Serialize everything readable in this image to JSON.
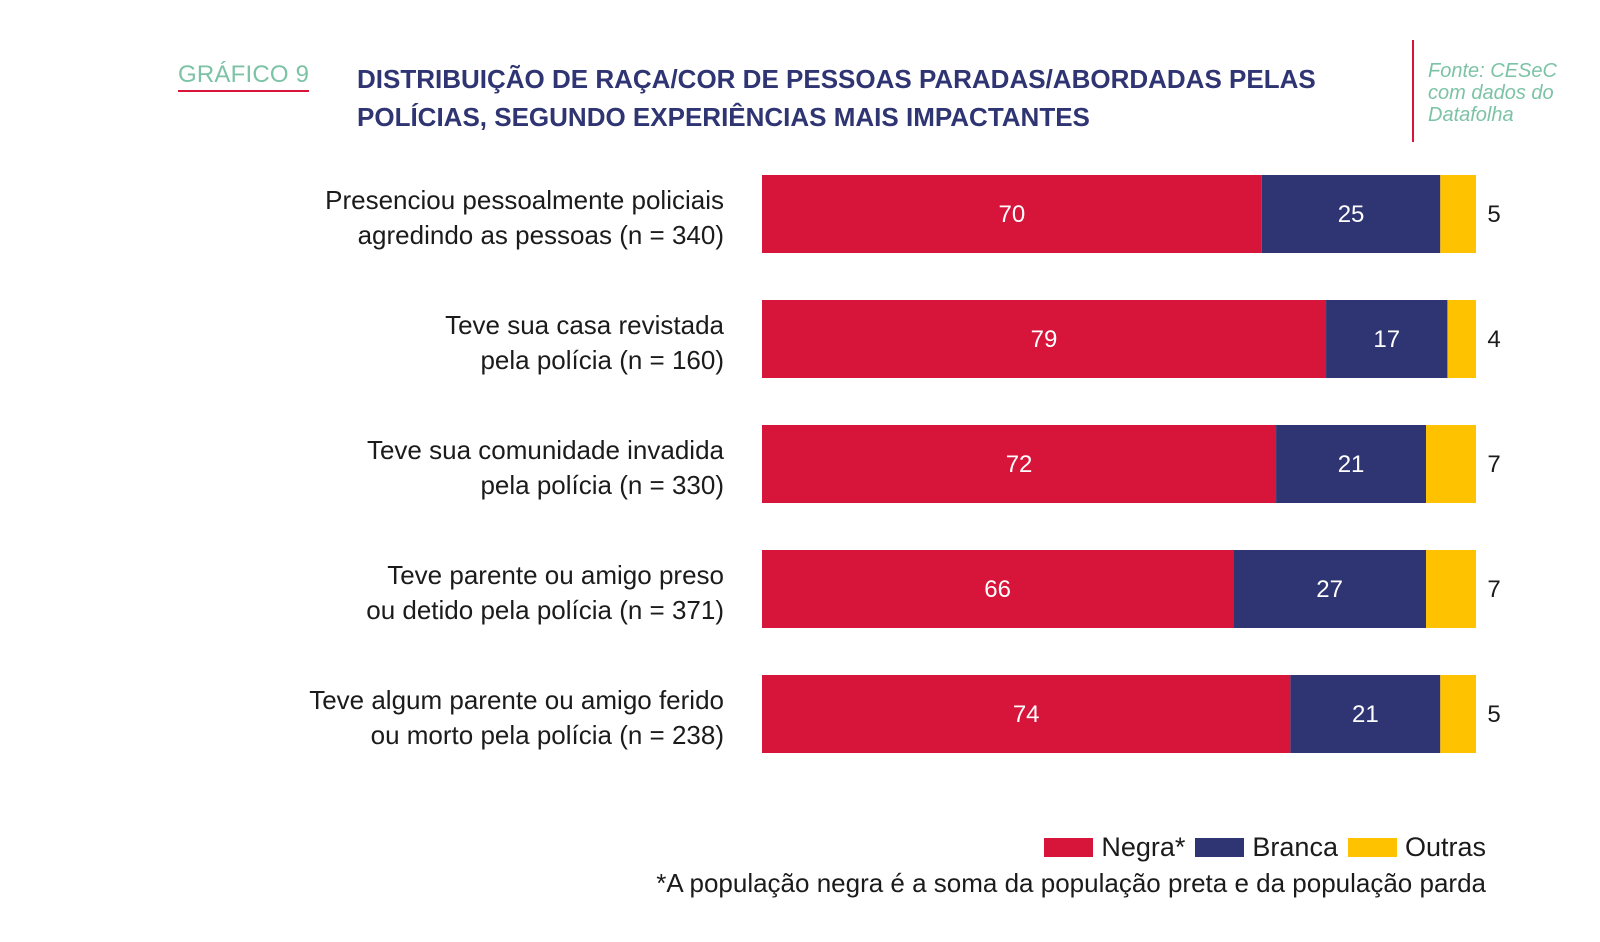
{
  "header": {
    "tag": "GRÁFICO 9",
    "title_line1": "DISTRIBUIÇÃO DE RAÇA/COR DE PESSOAS PARADAS/ABORDADAS PELAS",
    "title_line2": "POLÍCIAS, SEGUNDO EXPERIÊNCIAS MAIS IMPACTANTES",
    "source_line1": "Fonte: CESeC",
    "source_line2": "com dados do",
    "source_line3": "Datafolha"
  },
  "chart_data": {
    "type": "bar",
    "orientation": "horizontal",
    "stacked": true,
    "categories": [
      [
        "Presenciou pessoalmente policiais",
        "agredindo as pessoas (n = 340)"
      ],
      [
        "Teve sua casa revistada",
        "pela polícia (n = 160)"
      ],
      [
        "Teve sua comunidade invadida",
        "pela polícia (n = 330)"
      ],
      [
        "Teve parente ou amigo preso",
        "ou detido pela polícia (n = 371)"
      ],
      [
        "Teve algum parente ou amigo ferido",
        "ou morto pela polícia (n = 238)"
      ]
    ],
    "series": [
      {
        "name": "Negra*",
        "color": "#d7143a",
        "values": [
          70,
          79,
          72,
          66,
          74
        ]
      },
      {
        "name": "Branca",
        "color": "#2f3472",
        "values": [
          25,
          17,
          21,
          27,
          21
        ]
      },
      {
        "name": "Outras",
        "color": "#ffc200",
        "values": [
          5,
          4,
          7,
          7,
          5
        ]
      }
    ],
    "xlim": [
      0,
      100
    ],
    "grid": false,
    "legend_position": "bottom-right"
  },
  "legend": {
    "items": [
      "Negra*",
      "Branca",
      "Outras"
    ],
    "colors": [
      "#d7143a",
      "#2f3472",
      "#ffc200"
    ]
  },
  "footnote": "*A população negra é a soma da população preta e da população parda"
}
